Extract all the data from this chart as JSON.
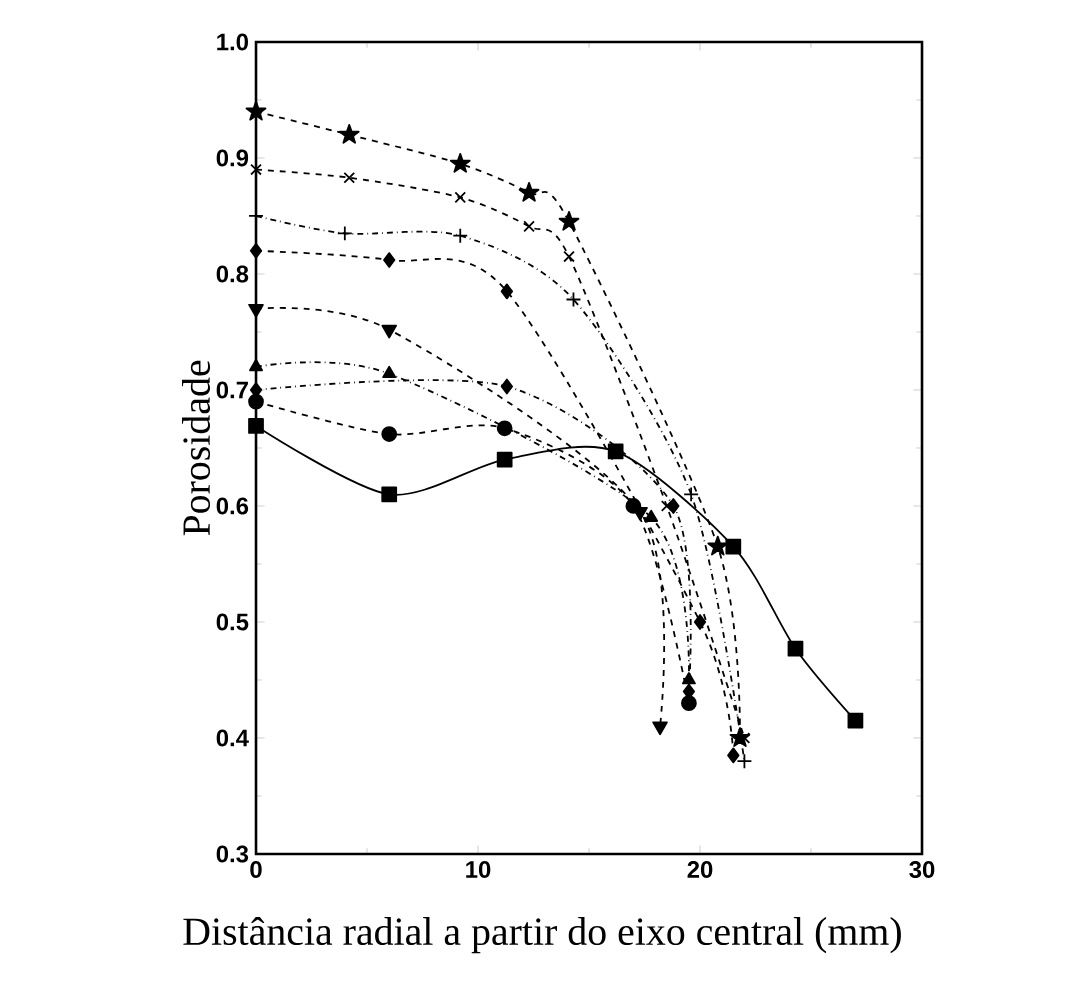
{
  "chart_data": {
    "type": "line",
    "xlabel": "Distância radial a partir do eixo central (mm)",
    "ylabel": "Porosidade",
    "xlim": [
      0,
      30
    ],
    "xticks": [
      0,
      10,
      20,
      30
    ],
    "ylim": [
      0.3,
      1.0
    ],
    "yticks": [
      0.3,
      0.4,
      0.5,
      0.6,
      0.7,
      0.8,
      0.9,
      {
        "value": 1.0,
        "label": "1.0"
      }
    ],
    "grid": false,
    "legend": false,
    "series": [
      {
        "color": "#000000",
        "marker": "star",
        "line_style": "dashed",
        "x": [
          0,
          4.2,
          9.2,
          12.3,
          14.1,
          20.8,
          21.8
        ],
        "values": [
          0.94,
          0.92,
          0.895,
          0.87,
          0.845,
          0.565,
          0.4
        ]
      },
      {
        "color": "#000000",
        "marker": "cross",
        "line_style": "dashed",
        "x": [
          0,
          4.2,
          9.2,
          12.3,
          14.1,
          18.5,
          22
        ],
        "values": [
          0.89,
          0.883,
          0.866,
          0.841,
          0.815,
          0.6,
          0.4
        ]
      },
      {
        "color": "#000000",
        "marker": "plus",
        "line_style": "dotted",
        "x": [
          0,
          4,
          9.2,
          14.3,
          19.6,
          22
        ],
        "values": [
          0.85,
          0.835,
          0.833,
          0.778,
          0.61,
          0.38
        ]
      },
      {
        "color": "#000000",
        "marker": "diamond",
        "line_style": "dashed",
        "x": [
          0,
          6,
          11.3,
          20,
          21.5
        ],
        "values": [
          0.82,
          0.812,
          0.785,
          0.5,
          0.385
        ]
      },
      {
        "color": "#000000",
        "marker": "triangle-down",
        "line_style": "dashed",
        "x": [
          0,
          6,
          17.3,
          18.2
        ],
        "values": [
          0.77,
          0.752,
          0.595,
          0.41
        ]
      },
      {
        "color": "#000000",
        "marker": "triangle",
        "line_style": "dotted",
        "x": [
          0,
          6,
          17.8,
          19.5
        ],
        "values": [
          0.72,
          0.714,
          0.59,
          0.45
        ]
      },
      {
        "color": "#000000",
        "marker": "diamond",
        "line_style": "dotted",
        "x": [
          0,
          11.3,
          18.8,
          19.5
        ],
        "values": [
          0.7,
          0.703,
          0.6,
          0.44
        ]
      },
      {
        "color": "#000000",
        "marker": "circle",
        "line_style": "dashed",
        "x": [
          0,
          6,
          11.2,
          17,
          19.5
        ],
        "values": [
          0.69,
          0.662,
          0.667,
          0.6,
          0.43
        ]
      },
      {
        "color": "#000000",
        "marker": "square",
        "line_style": "solid",
        "x": [
          0,
          6,
          11.2,
          16.2,
          21.5,
          24.3,
          27
        ],
        "values": [
          0.669,
          0.61,
          0.64,
          0.647,
          0.565,
          0.477,
          0.415
        ]
      }
    ]
  }
}
